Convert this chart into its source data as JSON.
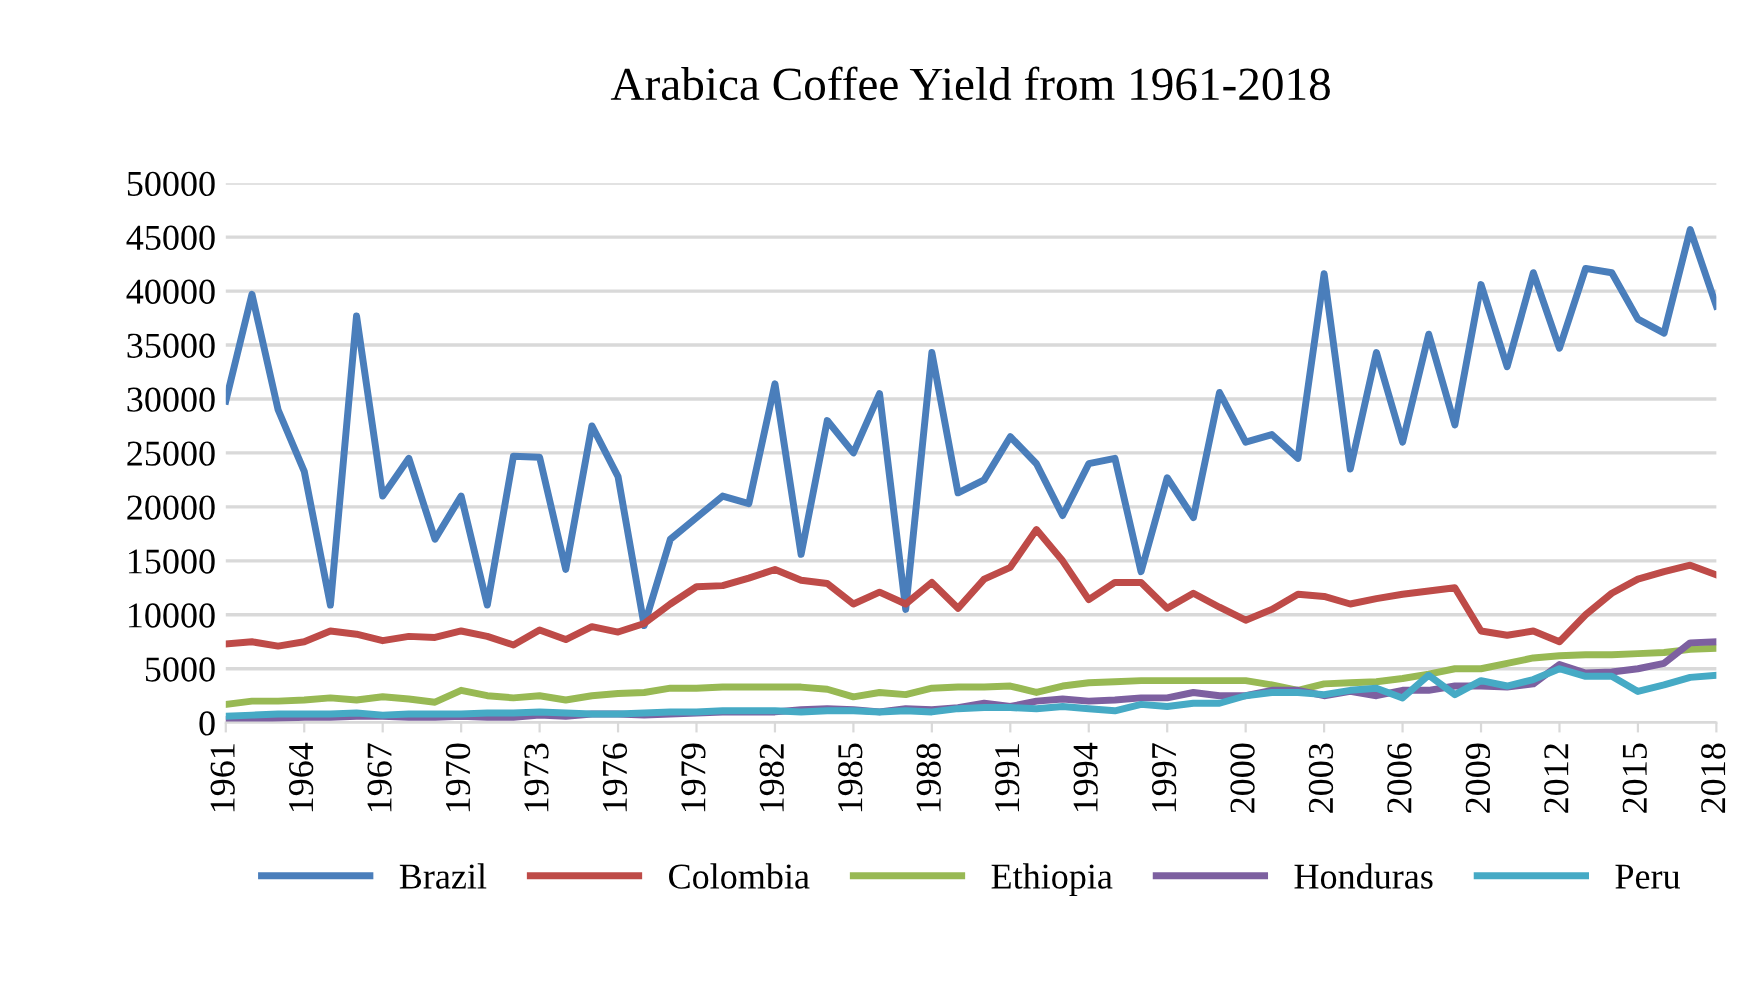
{
  "chart_data": {
    "type": "line",
    "title": "Arabica Coffee Yield from 1961-2018",
    "x": [
      1961,
      1962,
      1963,
      1964,
      1965,
      1966,
      1967,
      1968,
      1969,
      1970,
      1971,
      1972,
      1973,
      1974,
      1975,
      1976,
      1977,
      1978,
      1979,
      1980,
      1981,
      1982,
      1983,
      1984,
      1985,
      1986,
      1987,
      1988,
      1989,
      1990,
      1991,
      1992,
      1993,
      1994,
      1995,
      1996,
      1997,
      1998,
      1999,
      2000,
      2001,
      2002,
      2003,
      2004,
      2005,
      2006,
      2007,
      2008,
      2009,
      2010,
      2011,
      2012,
      2013,
      2014,
      2015,
      2016,
      2017,
      2018
    ],
    "xlim": [
      1961,
      2018
    ],
    "xticks": [
      1961,
      1964,
      1967,
      1970,
      1973,
      1976,
      1979,
      1982,
      1985,
      1988,
      1991,
      1994,
      1997,
      2000,
      2003,
      2006,
      2009,
      2012,
      2015,
      2018
    ],
    "ylim": [
      0,
      50000
    ],
    "yticks": [
      0,
      5000,
      10000,
      15000,
      20000,
      25000,
      30000,
      35000,
      40000,
      45000,
      50000
    ],
    "grid": "y",
    "legend": "bottom",
    "marker": "none",
    "line_style": "solid",
    "series": [
      {
        "name": "Brazil",
        "color": "#4a7ebb",
        "values": [
          29800,
          39700,
          29000,
          23300,
          10900,
          37700,
          21000,
          24500,
          17000,
          21000,
          10900,
          24700,
          24600,
          14200,
          27500,
          22800,
          9000,
          17000,
          19000,
          21000,
          20300,
          31400,
          15600,
          28000,
          25000,
          30500,
          10500,
          34300,
          21300,
          22500,
          26500,
          24000,
          19200,
          24000,
          24500,
          14000,
          22700,
          19000,
          30600,
          26000,
          26700,
          24500,
          41600,
          23500,
          34300,
          26000,
          36000,
          27600,
          40600,
          33000,
          41700,
          34700,
          42100,
          41700,
          37400,
          36100,
          45700,
          38600
        ]
      },
      {
        "name": "Colombia",
        "color": "#be4b48",
        "values": [
          7300,
          7500,
          7100,
          7500,
          8500,
          8200,
          7600,
          8000,
          7900,
          8500,
          8000,
          7200,
          8600,
          7700,
          8900,
          8400,
          9200,
          11000,
          12600,
          12700,
          13400,
          14200,
          13200,
          12900,
          11000,
          12100,
          11000,
          13000,
          10600,
          13300,
          14400,
          17900,
          15000,
          11400,
          13000,
          13000,
          10600,
          12000,
          10700,
          9500,
          10500,
          11900,
          11700,
          11000,
          11500,
          11900,
          12200,
          12500,
          8500,
          8100,
          8500,
          7500,
          10000,
          12000,
          13300,
          14000,
          14600,
          13700
        ]
      },
      {
        "name": "Ethiopia",
        "color": "#98b954",
        "values": [
          1700,
          2000,
          2000,
          2100,
          2300,
          2100,
          2400,
          2200,
          1900,
          3000,
          2500,
          2300,
          2500,
          2100,
          2500,
          2700,
          2800,
          3200,
          3200,
          3300,
          3300,
          3300,
          3300,
          3100,
          2400,
          2800,
          2600,
          3200,
          3300,
          3300,
          3400,
          2800,
          3400,
          3700,
          3800,
          3900,
          3900,
          3900,
          3900,
          3900,
          3500,
          3000,
          3600,
          3700,
          3800,
          4100,
          4500,
          5000,
          5000,
          5500,
          6000,
          6200,
          6300,
          6300,
          6400,
          6500,
          6800,
          6900
        ]
      },
      {
        "name": "Honduras",
        "color": "#7d60a0",
        "values": [
          300,
          300,
          400,
          500,
          500,
          600,
          600,
          500,
          500,
          600,
          500,
          500,
          700,
          600,
          800,
          800,
          700,
          800,
          900,
          1000,
          1000,
          1000,
          1200,
          1300,
          1200,
          1000,
          1300,
          1200,
          1400,
          1800,
          1500,
          2000,
          2200,
          2000,
          2100,
          2300,
          2300,
          2800,
          2500,
          2500,
          3000,
          3000,
          2500,
          2900,
          2500,
          3000,
          3000,
          3400,
          3400,
          3300,
          3600,
          5400,
          4600,
          4700,
          5000,
          5500,
          7400,
          7500
        ]
      },
      {
        "name": "Peru",
        "color": "#46aac5",
        "values": [
          600,
          700,
          800,
          800,
          800,
          900,
          700,
          800,
          800,
          800,
          900,
          900,
          1000,
          900,
          800,
          800,
          900,
          1000,
          1000,
          1100,
          1100,
          1100,
          1000,
          1100,
          1100,
          1000,
          1100,
          1000,
          1300,
          1400,
          1400,
          1300,
          1500,
          1300,
          1100,
          1700,
          1500,
          1800,
          1800,
          2500,
          2800,
          2800,
          2600,
          3000,
          3200,
          2300,
          4400,
          2600,
          3900,
          3400,
          4000,
          5000,
          4300,
          4300,
          2900,
          3500,
          4200,
          4400
        ]
      }
    ]
  }
}
